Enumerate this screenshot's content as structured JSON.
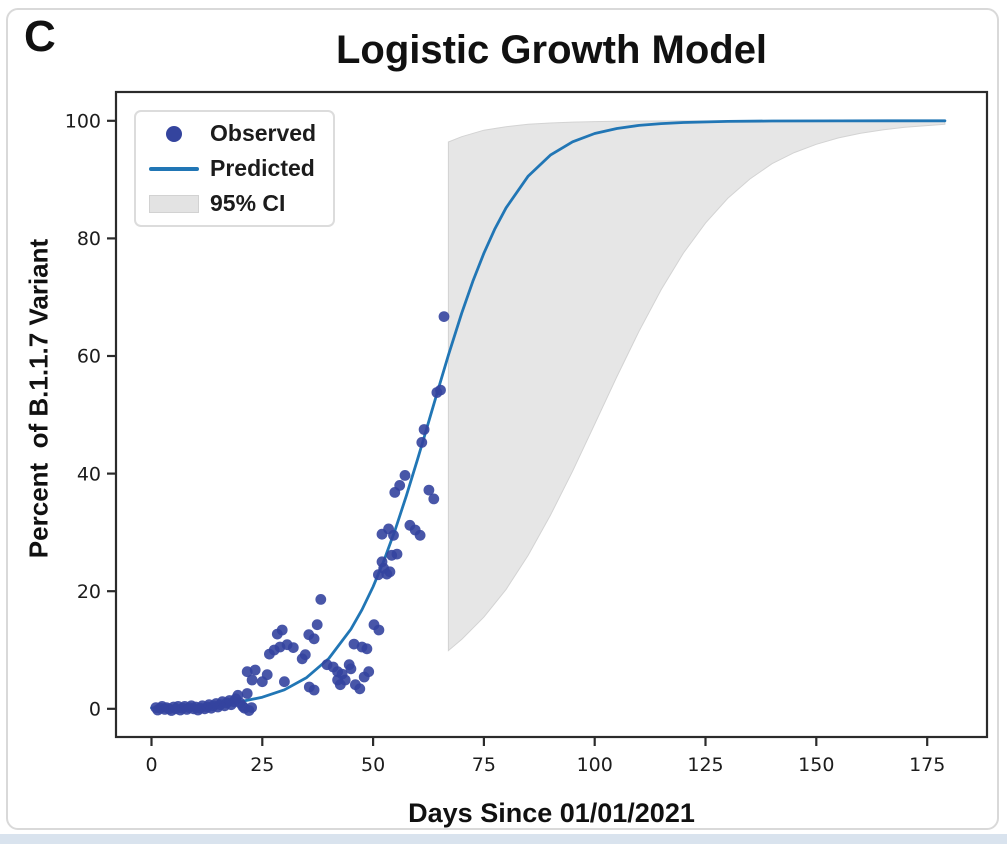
{
  "panel_label": "C",
  "colors": {
    "observed": "#34449e",
    "predicted": "#2176b5",
    "ci_fill": "#e3e3e3",
    "ci_edge": "#d3d3d3",
    "spine": "#2b2b2b",
    "tick_text": "#1c1c1c",
    "page_strip": "#d9e3ee"
  },
  "chart_data": {
    "type": "scatter",
    "title": "Logistic Growth Model",
    "xlabel": "Days Since 01/01/2021",
    "ylabel": "Percent  of B.1.1.7 Variant",
    "xlim": [
      -8,
      188.5
    ],
    "ylim": [
      -4.8,
      104.9
    ],
    "x_ticks": [
      0,
      25,
      50,
      75,
      100,
      125,
      150,
      175
    ],
    "y_ticks": [
      0,
      20,
      40,
      60,
      80,
      100
    ],
    "grid": false,
    "legend": {
      "position": "upper left",
      "entries": [
        {
          "label": "Observed",
          "type": "marker"
        },
        {
          "label": "Predicted",
          "type": "line"
        },
        {
          "label": "95% CI",
          "type": "patch"
        }
      ]
    },
    "series": [
      {
        "name": "Observed",
        "type": "scatter",
        "marker_radius": 5.4,
        "points": [
          [
            1,
            0.2
          ],
          [
            1.4,
            -0.2
          ],
          [
            2,
            0.1
          ],
          [
            2.4,
            0.4
          ],
          [
            3,
            -0.1
          ],
          [
            3.4,
            0.2
          ],
          [
            4,
            0
          ],
          [
            4.5,
            -0.3
          ],
          [
            5,
            0.3
          ],
          [
            5.5,
            0
          ],
          [
            6,
            0.4
          ],
          [
            6.5,
            -0.2
          ],
          [
            7,
            0.1
          ],
          [
            7.5,
            0.4
          ],
          [
            8,
            -0.1
          ],
          [
            8.5,
            0.2
          ],
          [
            9,
            0.5
          ],
          [
            9.5,
            0
          ],
          [
            10,
            0.3
          ],
          [
            10.5,
            -0.2
          ],
          [
            11,
            0.1
          ],
          [
            11.5,
            0.5
          ],
          [
            12,
            0
          ],
          [
            12.6,
            0.3
          ],
          [
            13,
            0.7
          ],
          [
            13.5,
            0.1
          ],
          [
            14,
            0.5
          ],
          [
            14.6,
            0.9
          ],
          [
            15,
            0.3
          ],
          [
            15.5,
            0.7
          ],
          [
            16,
            1.2
          ],
          [
            16.5,
            0.5
          ],
          [
            17,
            1
          ],
          [
            17.6,
            1.4
          ],
          [
            18,
            0.7
          ],
          [
            18.6,
            1.2
          ],
          [
            19,
            1.7
          ],
          [
            19.5,
            2.3
          ],
          [
            20,
            1
          ],
          [
            20.6,
            0.4
          ],
          [
            21,
            0.1
          ],
          [
            21.6,
            2.6
          ],
          [
            22,
            -0.3
          ],
          [
            22.6,
            0.2
          ],
          [
            21.6,
            6.3
          ],
          [
            22.7,
            4.9
          ],
          [
            23.4,
            6.6
          ],
          [
            25,
            4.6
          ],
          [
            26.1,
            5.8
          ],
          [
            26.6,
            9.3
          ],
          [
            27.7,
            10
          ],
          [
            28.4,
            12.7
          ],
          [
            29,
            10.5
          ],
          [
            29.5,
            13.4
          ],
          [
            30,
            4.6
          ],
          [
            30.6,
            10.9
          ],
          [
            32,
            10.4
          ],
          [
            34,
            8.5
          ],
          [
            34.7,
            9.2
          ],
          [
            35.5,
            12.6
          ],
          [
            35.6,
            3.7
          ],
          [
            36.7,
            11.9
          ],
          [
            36.7,
            3.2
          ],
          [
            37.4,
            14.3
          ],
          [
            38.2,
            18.6
          ],
          [
            39.6,
            7.5
          ],
          [
            41,
            7.1
          ],
          [
            42,
            6.3
          ],
          [
            42,
            4.9
          ],
          [
            42.6,
            4.1
          ],
          [
            43,
            5.9
          ],
          [
            43.7,
            4.9
          ],
          [
            44.6,
            7.5
          ],
          [
            45,
            6.8
          ],
          [
            45.7,
            11
          ],
          [
            46,
            4.1
          ],
          [
            47,
            3.4
          ],
          [
            47.5,
            10.5
          ],
          [
            48,
            5.4
          ],
          [
            48.6,
            10.2
          ],
          [
            49,
            6.3
          ],
          [
            50.2,
            14.3
          ],
          [
            51.3,
            13.4
          ],
          [
            51.2,
            22.8
          ],
          [
            52,
            25
          ],
          [
            52.4,
            23.9
          ],
          [
            53.1,
            22.9
          ],
          [
            53.8,
            23.3
          ],
          [
            52,
            29.7
          ],
          [
            53.5,
            30.6
          ],
          [
            54.6,
            29.5
          ],
          [
            54.2,
            26.1
          ],
          [
            55.4,
            26.3
          ],
          [
            54.9,
            36.8
          ],
          [
            56,
            38
          ],
          [
            57.2,
            39.7
          ],
          [
            58.3,
            31.2
          ],
          [
            59.5,
            30.4
          ],
          [
            60.6,
            29.5
          ],
          [
            61,
            45.3
          ],
          [
            61.5,
            47.5
          ],
          [
            62.6,
            37.2
          ],
          [
            63.7,
            35.7
          ],
          [
            64.4,
            53.8
          ],
          [
            65.2,
            54.2
          ],
          [
            66,
            66.7
          ]
        ]
      },
      {
        "name": "Predicted",
        "type": "line",
        "points": [
          [
            0,
            0.15
          ],
          [
            5,
            0.26
          ],
          [
            10,
            0.42
          ],
          [
            15,
            0.7
          ],
          [
            20,
            1.18
          ],
          [
            25,
            1.97
          ],
          [
            30,
            3.23
          ],
          [
            35,
            5.31
          ],
          [
            40,
            8.55
          ],
          [
            45,
            13.54
          ],
          [
            47.5,
            16.85
          ],
          [
            50,
            20.77
          ],
          [
            52.5,
            25.32
          ],
          [
            55,
            30.49
          ],
          [
            57.5,
            36.21
          ],
          [
            60,
            42.34
          ],
          [
            61.5,
            46.15
          ],
          [
            63,
            50
          ],
          [
            65,
            55.13
          ],
          [
            67,
            60.16
          ],
          [
            70,
            67.28
          ],
          [
            72.5,
            72.68
          ],
          [
            75,
            77.49
          ],
          [
            77.5,
            81.67
          ],
          [
            80,
            85.21
          ],
          [
            85,
            90.6
          ],
          [
            90,
            94.16
          ],
          [
            95,
            96.43
          ],
          [
            100,
            97.84
          ],
          [
            105,
            98.7
          ],
          [
            110,
            99.22
          ],
          [
            115,
            99.53
          ],
          [
            120,
            99.72
          ],
          [
            130,
            99.9
          ],
          [
            140,
            99.96
          ],
          [
            155,
            99.99
          ],
          [
            166,
            100
          ],
          [
            179,
            100
          ]
        ]
      },
      {
        "name": "95% CI",
        "type": "band",
        "x": [
          67,
          70,
          75,
          80,
          85,
          90,
          95,
          100,
          105,
          110,
          115,
          120,
          125,
          130,
          135,
          140,
          145,
          150,
          155,
          160,
          165,
          170,
          179
        ],
        "upper": [
          96.4,
          97.3,
          98.4,
          99.0,
          99.4,
          99.63,
          99.78,
          99.86,
          99.91,
          99.95,
          99.97,
          99.98,
          99.99,
          99.99,
          100,
          100,
          100,
          100,
          100,
          100,
          100,
          100,
          100
        ],
        "lower": [
          9.9,
          11.8,
          15.6,
          20.3,
          26.1,
          32.9,
          40.4,
          48.4,
          56.5,
          64.2,
          71.3,
          77.5,
          82.6,
          86.8,
          90.1,
          92.7,
          94.6,
          96.0,
          97.1,
          97.9,
          98.45,
          98.9,
          99.4
        ]
      }
    ]
  }
}
